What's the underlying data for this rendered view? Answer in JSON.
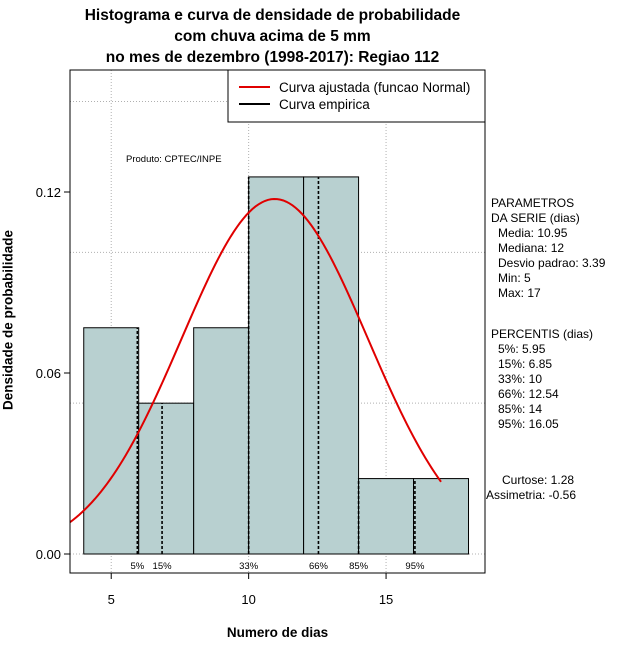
{
  "chart_data": {
    "type": "bar",
    "title_lines": [
      "Histograma e curva de densidade de probabilidade",
      "com chuva acima de 5 mm",
      "no mes de dezembro (1998-2017): Regiao 112"
    ],
    "xlabel": "Numero de dias",
    "ylabel": "Densidade de probabilidade",
    "xlim": [
      3.5,
      18.6
    ],
    "ylim": [
      0,
      0.165
    ],
    "x_ticks": [
      5,
      10,
      15
    ],
    "y_ticks": [
      0.0,
      0.06,
      0.12
    ],
    "y_tick_labels": [
      "0.00",
      "0.06",
      "0.12"
    ],
    "bins": [
      {
        "from": 4,
        "to": 6,
        "density": 0.075
      },
      {
        "from": 6,
        "to": 8,
        "density": 0.05
      },
      {
        "from": 8,
        "to": 10,
        "density": 0.075
      },
      {
        "from": 10,
        "to": 12,
        "density": 0.125
      },
      {
        "from": 12,
        "to": 14,
        "density": 0.125
      },
      {
        "from": 14,
        "to": 16,
        "density": 0.025
      },
      {
        "from": 16,
        "to": 18,
        "density": 0.025
      }
    ],
    "fitted_curve": {
      "name": "Curva ajustada (funcao Normal)",
      "color": "#e00000",
      "mean": 10.95,
      "sd": 3.39,
      "x_range": [
        3.5,
        17
      ]
    },
    "empirical_curve": {
      "name": "Curva empirica",
      "color": "#000000"
    },
    "percentile_markers": [
      {
        "label": "5%",
        "value": 5.95
      },
      {
        "label": "15%",
        "value": 6.85
      },
      {
        "label": "33%",
        "value": 10
      },
      {
        "label": "66%",
        "value": 12.54
      },
      {
        "label": "85%",
        "value": 14
      },
      {
        "label": "95%",
        "value": 16.05
      }
    ],
    "legend_position": "top-right",
    "grid": true,
    "bar_color": "#b8d0d0"
  },
  "source_label": "Produto: CPTEC/INPE",
  "parameters": {
    "heading": [
      "PARAMETROS",
      "DA SERIE (dias)"
    ],
    "lines": [
      "Media: 10.95",
      "Mediana: 12",
      "Desvio padrao: 3.39",
      "Min: 5",
      "Max: 17"
    ]
  },
  "percentiles": {
    "heading": "PERCENTIS (dias)",
    "lines": [
      "5%: 5.95",
      "15%: 6.85",
      "33%: 10",
      "66%: 12.54",
      "85%: 14",
      "95%: 16.05"
    ]
  },
  "shape": {
    "kurtosis": "Curtose: 1.28",
    "skewness": "Assimetria: -0.56"
  }
}
